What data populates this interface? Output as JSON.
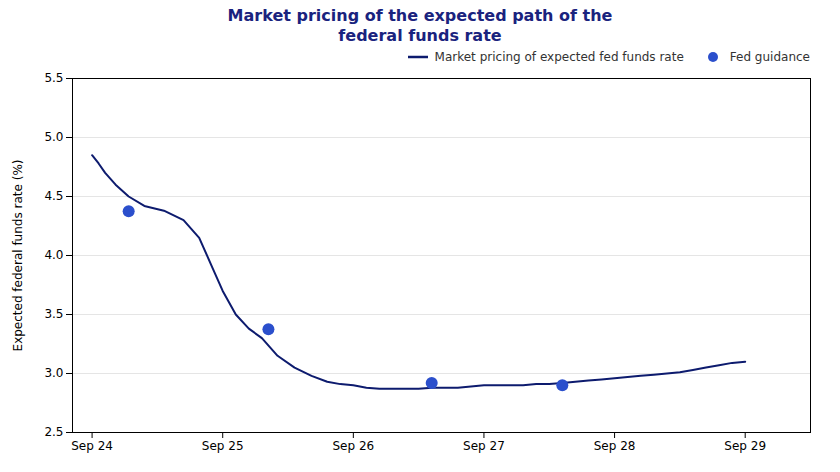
{
  "chart_data": {
    "type": "line",
    "title": "Market pricing of the expected path of the\nfederal funds rate",
    "ylabel": "Expected federal funds rate (%)",
    "x": [
      0.0,
      0.05,
      0.1,
      0.18,
      0.28,
      0.4,
      0.55,
      0.7,
      0.82,
      0.92,
      1.0,
      1.1,
      1.2,
      1.3,
      1.42,
      1.55,
      1.68,
      1.8,
      1.9,
      2.0,
      2.1,
      2.2,
      2.3,
      2.4,
      2.5,
      2.6,
      2.7,
      2.8,
      2.9,
      3.0,
      3.1,
      3.2,
      3.3,
      3.4,
      3.5,
      3.6,
      3.7,
      3.8,
      3.9,
      4.0,
      4.1,
      4.2,
      4.3,
      4.4,
      4.5,
      4.6,
      4.7,
      4.8,
      4.9,
      5.0
    ],
    "series": [
      {
        "name": "Market pricing of expected fed funds rate",
        "type": "line",
        "color": "#0d1b6e",
        "values": [
          4.85,
          4.78,
          4.7,
          4.6,
          4.5,
          4.42,
          4.38,
          4.3,
          4.15,
          3.9,
          3.7,
          3.5,
          3.38,
          3.3,
          3.15,
          3.05,
          2.98,
          2.93,
          2.91,
          2.9,
          2.88,
          2.87,
          2.87,
          2.87,
          2.87,
          2.88,
          2.88,
          2.88,
          2.89,
          2.9,
          2.9,
          2.9,
          2.9,
          2.91,
          2.91,
          2.92,
          2.93,
          2.94,
          2.95,
          2.96,
          2.97,
          2.98,
          2.99,
          3.0,
          3.01,
          3.03,
          3.05,
          3.07,
          3.09,
          3.1
        ]
      },
      {
        "name": "Fed guidance",
        "type": "scatter",
        "color": "#2b4fcc",
        "x": [
          0.28,
          1.35,
          2.6,
          3.6
        ],
        "values": [
          4.375,
          3.375,
          2.92,
          2.9
        ]
      }
    ],
    "xlim": [
      -0.15,
      5.5
    ],
    "xticks": [
      {
        "value": 0,
        "label": "Sep 24"
      },
      {
        "value": 1,
        "label": "Sep 25"
      },
      {
        "value": 2,
        "label": "Sep 26"
      },
      {
        "value": 3,
        "label": "Sep 27"
      },
      {
        "value": 4,
        "label": "Sep 28"
      },
      {
        "value": 5,
        "label": "Sep 29"
      }
    ],
    "ylim": [
      2.5,
      5.5
    ],
    "yticks": [
      2.5,
      {
        "value": 3,
        "label": "3.0"
      },
      3.5,
      {
        "value": 4,
        "label": "4.0"
      },
      4.5,
      {
        "value": 5,
        "label": "5.0"
      },
      5.5
    ],
    "grid": true,
    "legend": "upper right"
  }
}
